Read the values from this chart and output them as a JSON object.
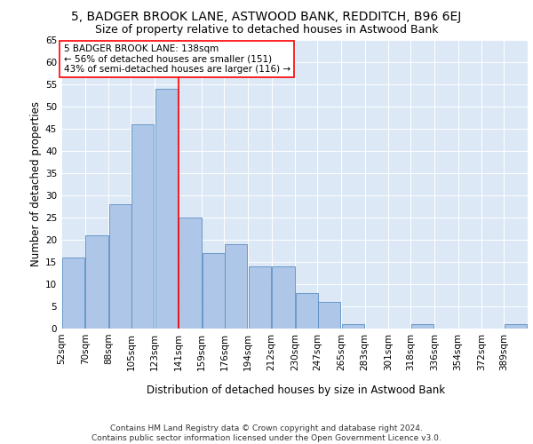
{
  "title1": "5, BADGER BROOK LANE, ASTWOOD BANK, REDDITCH, B96 6EJ",
  "title2": "Size of property relative to detached houses in Astwood Bank",
  "xlabel": "Distribution of detached houses by size in Astwood Bank",
  "ylabel": "Number of detached properties",
  "footnote1": "Contains HM Land Registry data © Crown copyright and database right 2024.",
  "footnote2": "Contains public sector information licensed under the Open Government Licence v3.0.",
  "annotation_line1": "5 BADGER BROOK LANE: 138sqm",
  "annotation_line2": "← 56% of detached houses are smaller (151)",
  "annotation_line3": "43% of semi-detached houses are larger (116) →",
  "property_size": 138,
  "bin_edges": [
    52,
    70,
    88,
    105,
    123,
    141,
    159,
    176,
    194,
    212,
    230,
    247,
    265,
    283,
    301,
    318,
    336,
    354,
    372,
    389,
    407
  ],
  "bar_values": [
    16,
    21,
    28,
    46,
    54,
    25,
    17,
    19,
    14,
    14,
    8,
    6,
    1,
    0,
    0,
    1,
    0,
    0,
    0,
    1
  ],
  "bar_color": "#aec6e8",
  "bar_edge_color": "#5a8fc2",
  "vline_color": "red",
  "vline_x": 141,
  "background_color": "#dce8f5",
  "ylim": [
    0,
    65
  ],
  "yticks": [
    0,
    5,
    10,
    15,
    20,
    25,
    30,
    35,
    40,
    45,
    50,
    55,
    60,
    65
  ],
  "annotation_box_color": "white",
  "annotation_box_edge_color": "red",
  "title1_fontsize": 10,
  "title2_fontsize": 9,
  "xlabel_fontsize": 8.5,
  "ylabel_fontsize": 8.5,
  "tick_fontsize": 7.5,
  "annotation_fontsize": 7.5,
  "footnote_fontsize": 6.5
}
